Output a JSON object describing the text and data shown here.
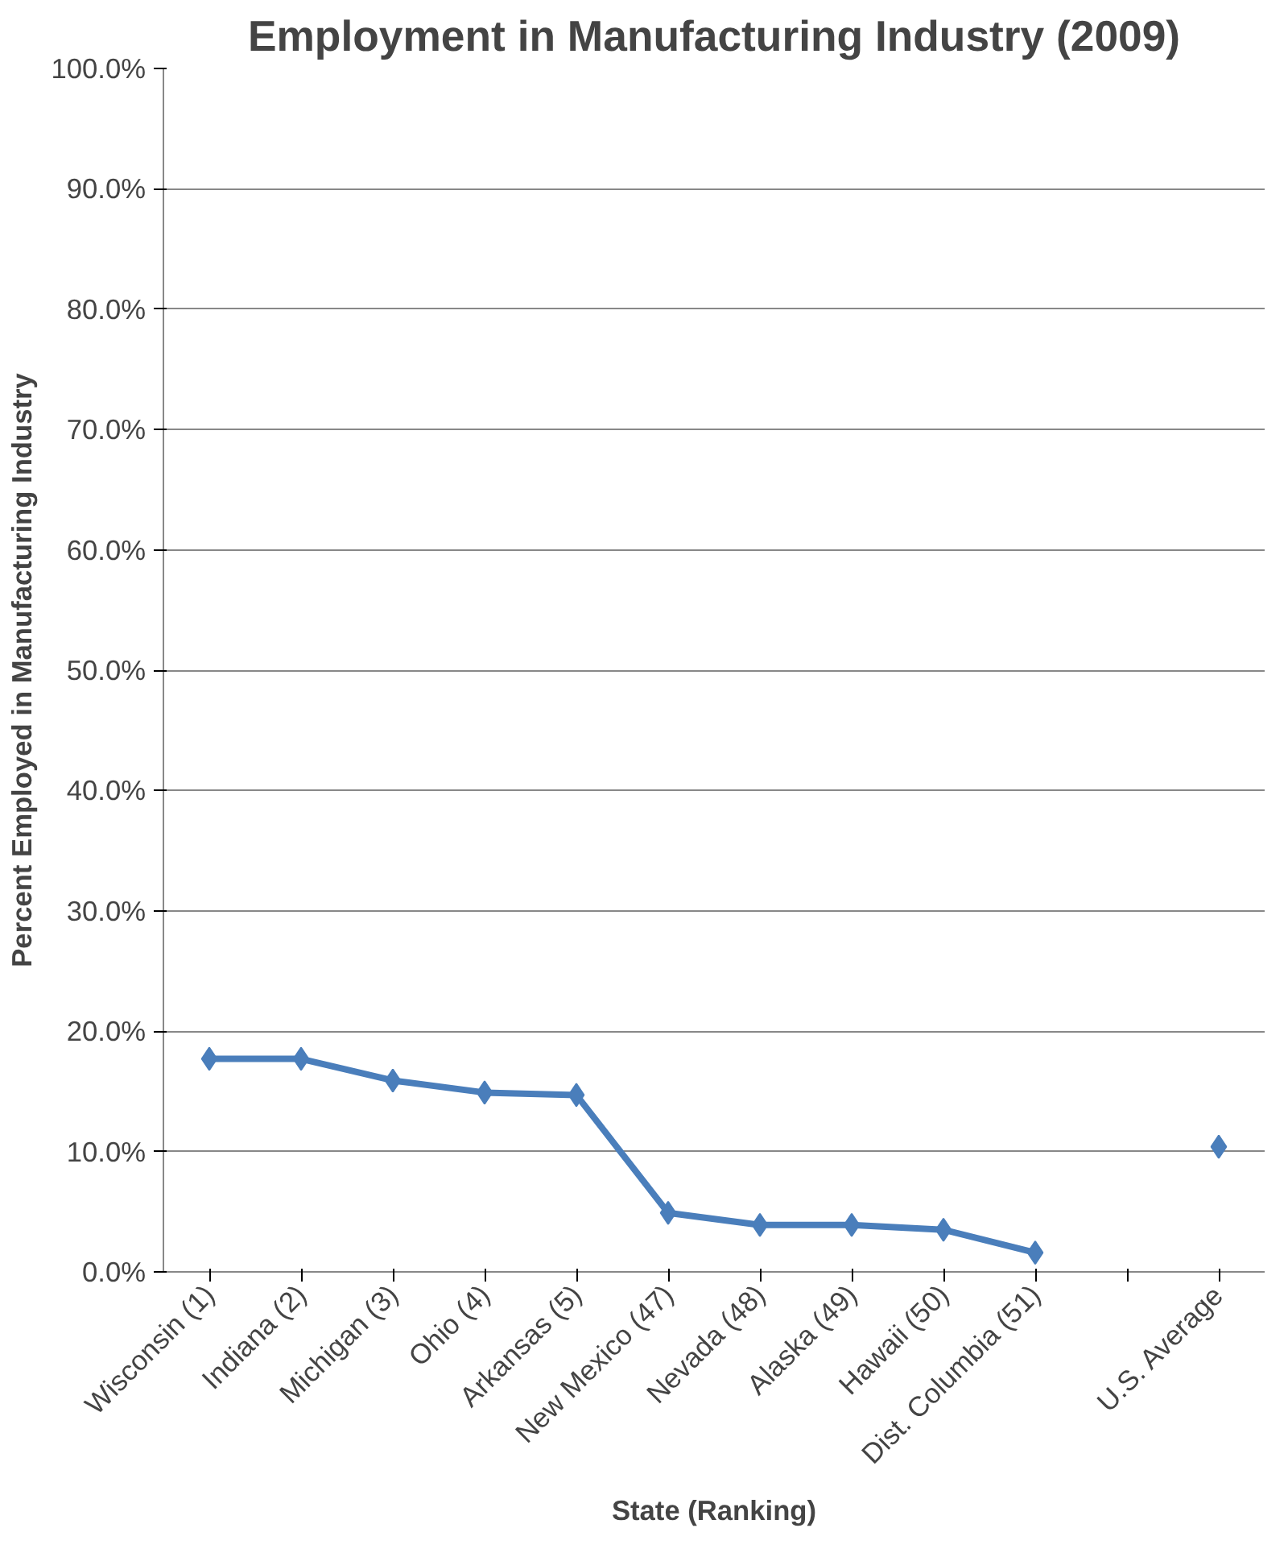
{
  "chart_data": {
    "type": "line",
    "title": "Employment in Manufacturing Industry (2009)",
    "xlabel": "State (Ranking)",
    "ylabel": "Percent Employed in Manufacturing Industry",
    "categories": [
      "Wisconsin (1)",
      "Indiana (2)",
      "Michigan (3)",
      "Ohio (4)",
      "Arkansas (5)",
      "New Mexico (47)",
      "Nevada (48)",
      "Alaska (49)",
      "Hawaii (50)",
      "Dist. Columbia (51)",
      null,
      "U.S. Average"
    ],
    "series": [
      {
        "color": "#4a7ebb",
        "values": [
          17.7,
          17.7,
          15.9,
          14.9,
          14.7,
          4.9,
          3.9,
          3.9,
          3.5,
          1.6,
          null,
          10.4
        ]
      }
    ],
    "ylim": [
      0,
      100
    ],
    "yticks": [
      {
        "value": 0,
        "label": "0.0%"
      },
      {
        "value": 10,
        "label": "10.0%"
      },
      {
        "value": 20,
        "label": "20.0%"
      },
      {
        "value": 30,
        "label": "30.0%"
      },
      {
        "value": 40,
        "label": "40.0%"
      },
      {
        "value": 50,
        "label": "50.0%"
      },
      {
        "value": 60,
        "label": "60.0%"
      },
      {
        "value": 70,
        "label": "70.0%"
      },
      {
        "value": 80,
        "label": "80.0%"
      },
      {
        "value": 90,
        "label": "90.0%"
      },
      {
        "value": 100,
        "label": "100.0%"
      }
    ],
    "grid": "y",
    "marker": "diamond",
    "line_style": "solid"
  }
}
